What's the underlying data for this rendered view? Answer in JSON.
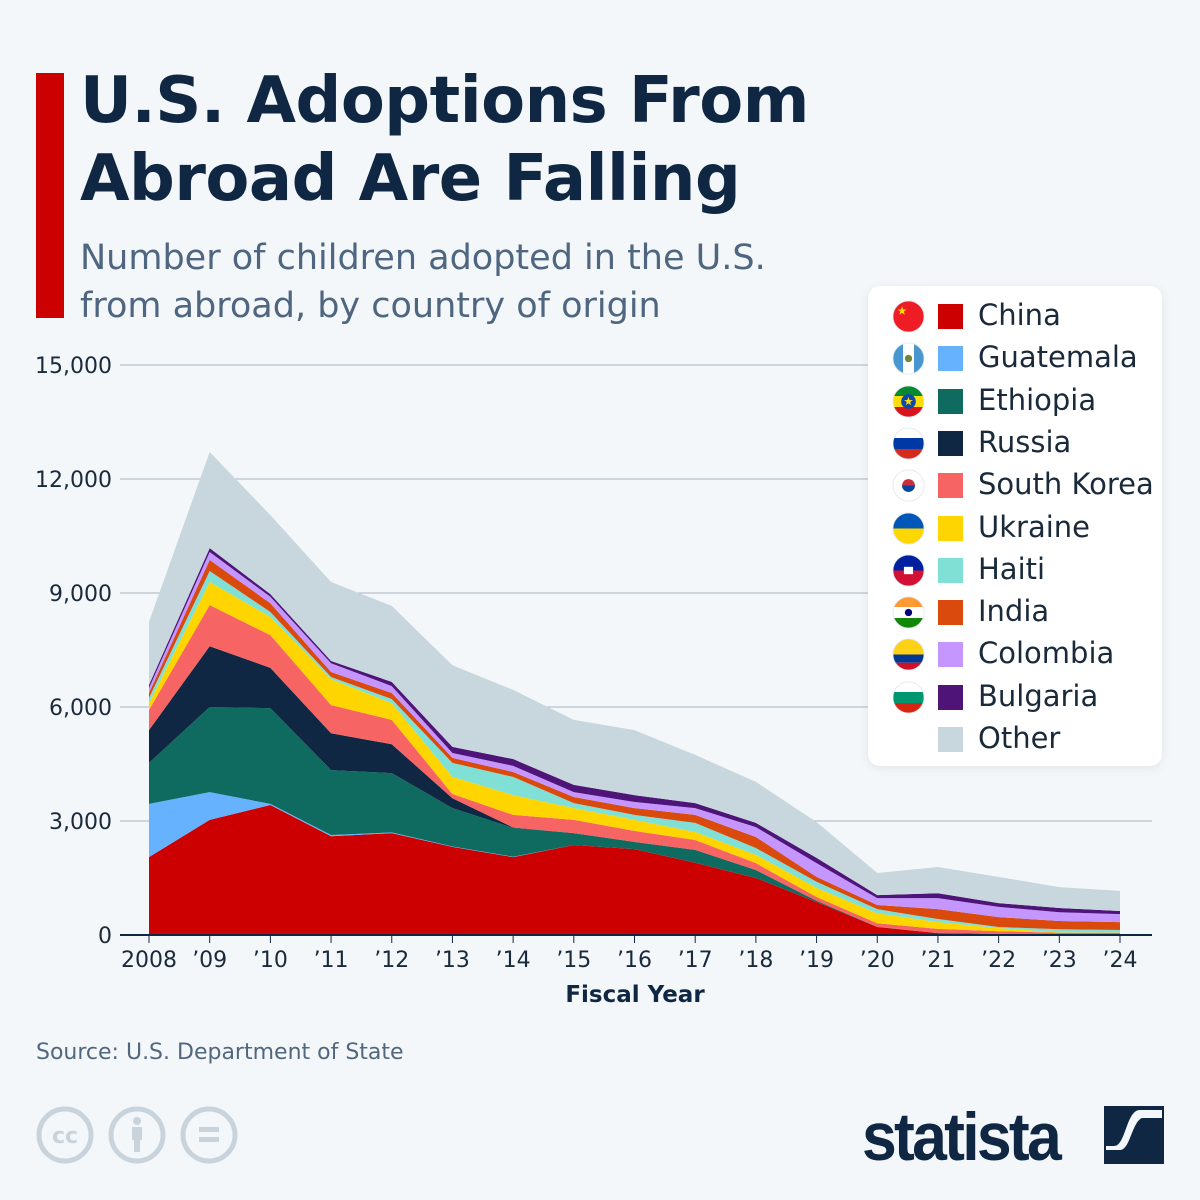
{
  "header": {
    "title": "U.S. Adoptions From Abroad Are Falling",
    "subtitle": "Number of children adopted in the U.S. from abroad, by country of origin"
  },
  "footer": {
    "source": "Source: U.S. Department of State",
    "brand": "statista",
    "license_icons": [
      "cc-icon",
      "attribution-icon",
      "no-derivatives-icon"
    ]
  },
  "colors": {
    "accent": "#cc0000",
    "title": "#0f2742",
    "grid": "#a9b4c0"
  },
  "chart_data": {
    "type": "area",
    "stacked": true,
    "title": "U.S. Adoptions From Abroad Are Falling",
    "subtitle": "Number of children adopted in the U.S. from abroad, by country of origin",
    "xlabel": "Fiscal Year",
    "ylabel": "",
    "ylim": [
      0,
      15000
    ],
    "yticks": [
      0,
      3000,
      6000,
      9000,
      12000,
      15000
    ],
    "ytick_labels": [
      "0",
      "3,000",
      "6,000",
      "9,000",
      "12,000",
      "15,000"
    ],
    "grid": true,
    "legend_position": "right",
    "x": [
      2008,
      2009,
      2010,
      2011,
      2012,
      2013,
      2014,
      2015,
      2016,
      2017,
      2018,
      2019,
      2020,
      2021,
      2022,
      2023,
      2024
    ],
    "xtick_labels": [
      "2008",
      "’09",
      "’10",
      "’11",
      "’12",
      "’13",
      "’14",
      "’15",
      "’16",
      "’17",
      "’18",
      "’19",
      "’20",
      "’21",
      "’22",
      "’23",
      "’24"
    ],
    "series": [
      {
        "name": "China",
        "color": "#cc0000",
        "flag": "china-flag-icon",
        "values": [
          2050,
          3030,
          3420,
          2600,
          2680,
          2320,
          2050,
          2370,
          2260,
          1900,
          1500,
          870,
          210,
          50,
          30,
          20,
          20
        ]
      },
      {
        "name": "Guatemala",
        "color": "#66b2ff",
        "flag": "guatemala-flag-icon",
        "values": [
          1400,
          730,
          30,
          30,
          20,
          10,
          10,
          0,
          0,
          0,
          0,
          0,
          0,
          0,
          0,
          0,
          0
        ]
      },
      {
        "name": "Ethiopia",
        "color": "#0f6b5f",
        "flag": "ethiopia-flag-icon",
        "values": [
          1080,
          2240,
          2520,
          1710,
          1560,
          1010,
          760,
          310,
          190,
          340,
          210,
          30,
          5,
          0,
          0,
          0,
          0
        ]
      },
      {
        "name": "Russia",
        "color": "#0f2742",
        "flag": "russia-flag-icon",
        "values": [
          860,
          1600,
          1060,
          970,
          760,
          260,
          10,
          0,
          0,
          0,
          0,
          0,
          0,
          0,
          0,
          0,
          0
        ]
      },
      {
        "name": "South Korea",
        "color": "#f76464",
        "flag": "south-korea-flag-icon",
        "values": [
          530,
          1080,
          860,
          740,
          640,
          110,
          330,
          350,
          290,
          260,
          180,
          100,
          95,
          110,
          70,
          40,
          40
        ]
      },
      {
        "name": "Ukraine",
        "color": "#ffd500",
        "flag": "ukraine-flag-icon",
        "values": [
          180,
          610,
          480,
          680,
          440,
          450,
          520,
          310,
          290,
          210,
          220,
          240,
          260,
          180,
          80,
          10,
          10
        ]
      },
      {
        "name": "Haiti",
        "color": "#80e0d6",
        "flag": "haiti-flag-icon",
        "values": [
          140,
          290,
          130,
          60,
          110,
          370,
          480,
          130,
          130,
          240,
          180,
          160,
          110,
          80,
          30,
          80,
          60
        ]
      },
      {
        "name": "India",
        "color": "#d94a0c",
        "flag": "india-flag-icon",
        "values": [
          130,
          290,
          230,
          130,
          160,
          130,
          130,
          160,
          180,
          210,
          290,
          130,
          110,
          260,
          260,
          220,
          210
        ]
      },
      {
        "name": "Colombia",
        "color": "#c596ff",
        "flag": "colombia-flag-icon",
        "values": [
          130,
          210,
          170,
          230,
          180,
          130,
          160,
          130,
          160,
          180,
          260,
          360,
          180,
          290,
          270,
          230,
          210
        ]
      },
      {
        "name": "Bulgaria",
        "color": "#4f1478",
        "flag": "bulgaria-flag-icon",
        "values": [
          80,
          100,
          70,
          60,
          110,
          160,
          180,
          190,
          180,
          130,
          110,
          140,
          80,
          130,
          100,
          110,
          80
        ]
      },
      {
        "name": "Other",
        "color": "#c8d6de",
        "flag": "",
        "values": [
          1660,
          2530,
          2080,
          2080,
          2000,
          2150,
          1820,
          1710,
          1710,
          1270,
          1080,
          940,
          580,
          690,
          690,
          550,
          530
        ]
      }
    ]
  }
}
